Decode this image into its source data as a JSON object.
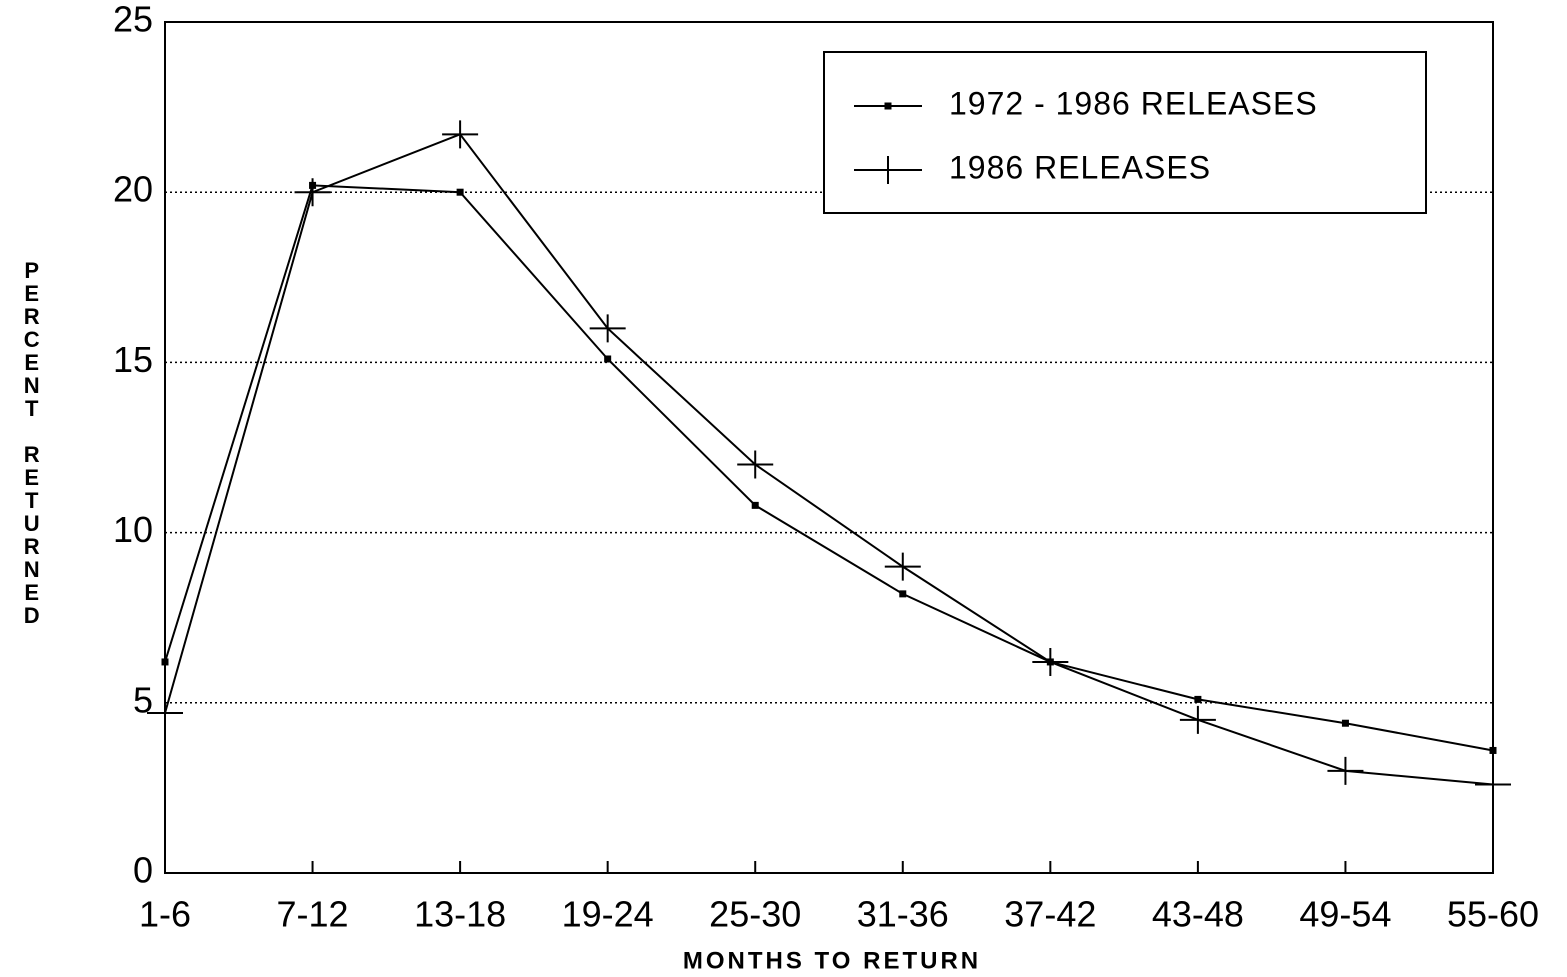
{
  "chart_data": {
    "type": "line",
    "x_label": "MONTHS TO RETURN",
    "y_label": "PERCENT RETURNED",
    "categories": [
      "1-6",
      "7-12",
      "13-18",
      "19-24",
      "25-30",
      "31-36",
      "37-42",
      "43-48",
      "49-54",
      "55-60"
    ],
    "series": [
      {
        "name": "1972 - 1986 RELEASES",
        "color": "#000000",
        "marker": "square",
        "values": [
          6.2,
          20.2,
          20.0,
          15.1,
          10.8,
          8.2,
          6.2,
          5.1,
          4.4,
          3.6
        ]
      },
      {
        "name": "1986 RELEASES",
        "color": "#000000",
        "marker": "plus",
        "values": [
          4.7,
          20.0,
          21.7,
          16.0,
          12.0,
          9.0,
          6.2,
          4.5,
          3.0,
          2.6
        ]
      }
    ],
    "ylim": [
      0,
      25
    ],
    "yticks": [
      0,
      5,
      10,
      15,
      20,
      25
    ],
    "grid": true,
    "legend": "upper right"
  }
}
